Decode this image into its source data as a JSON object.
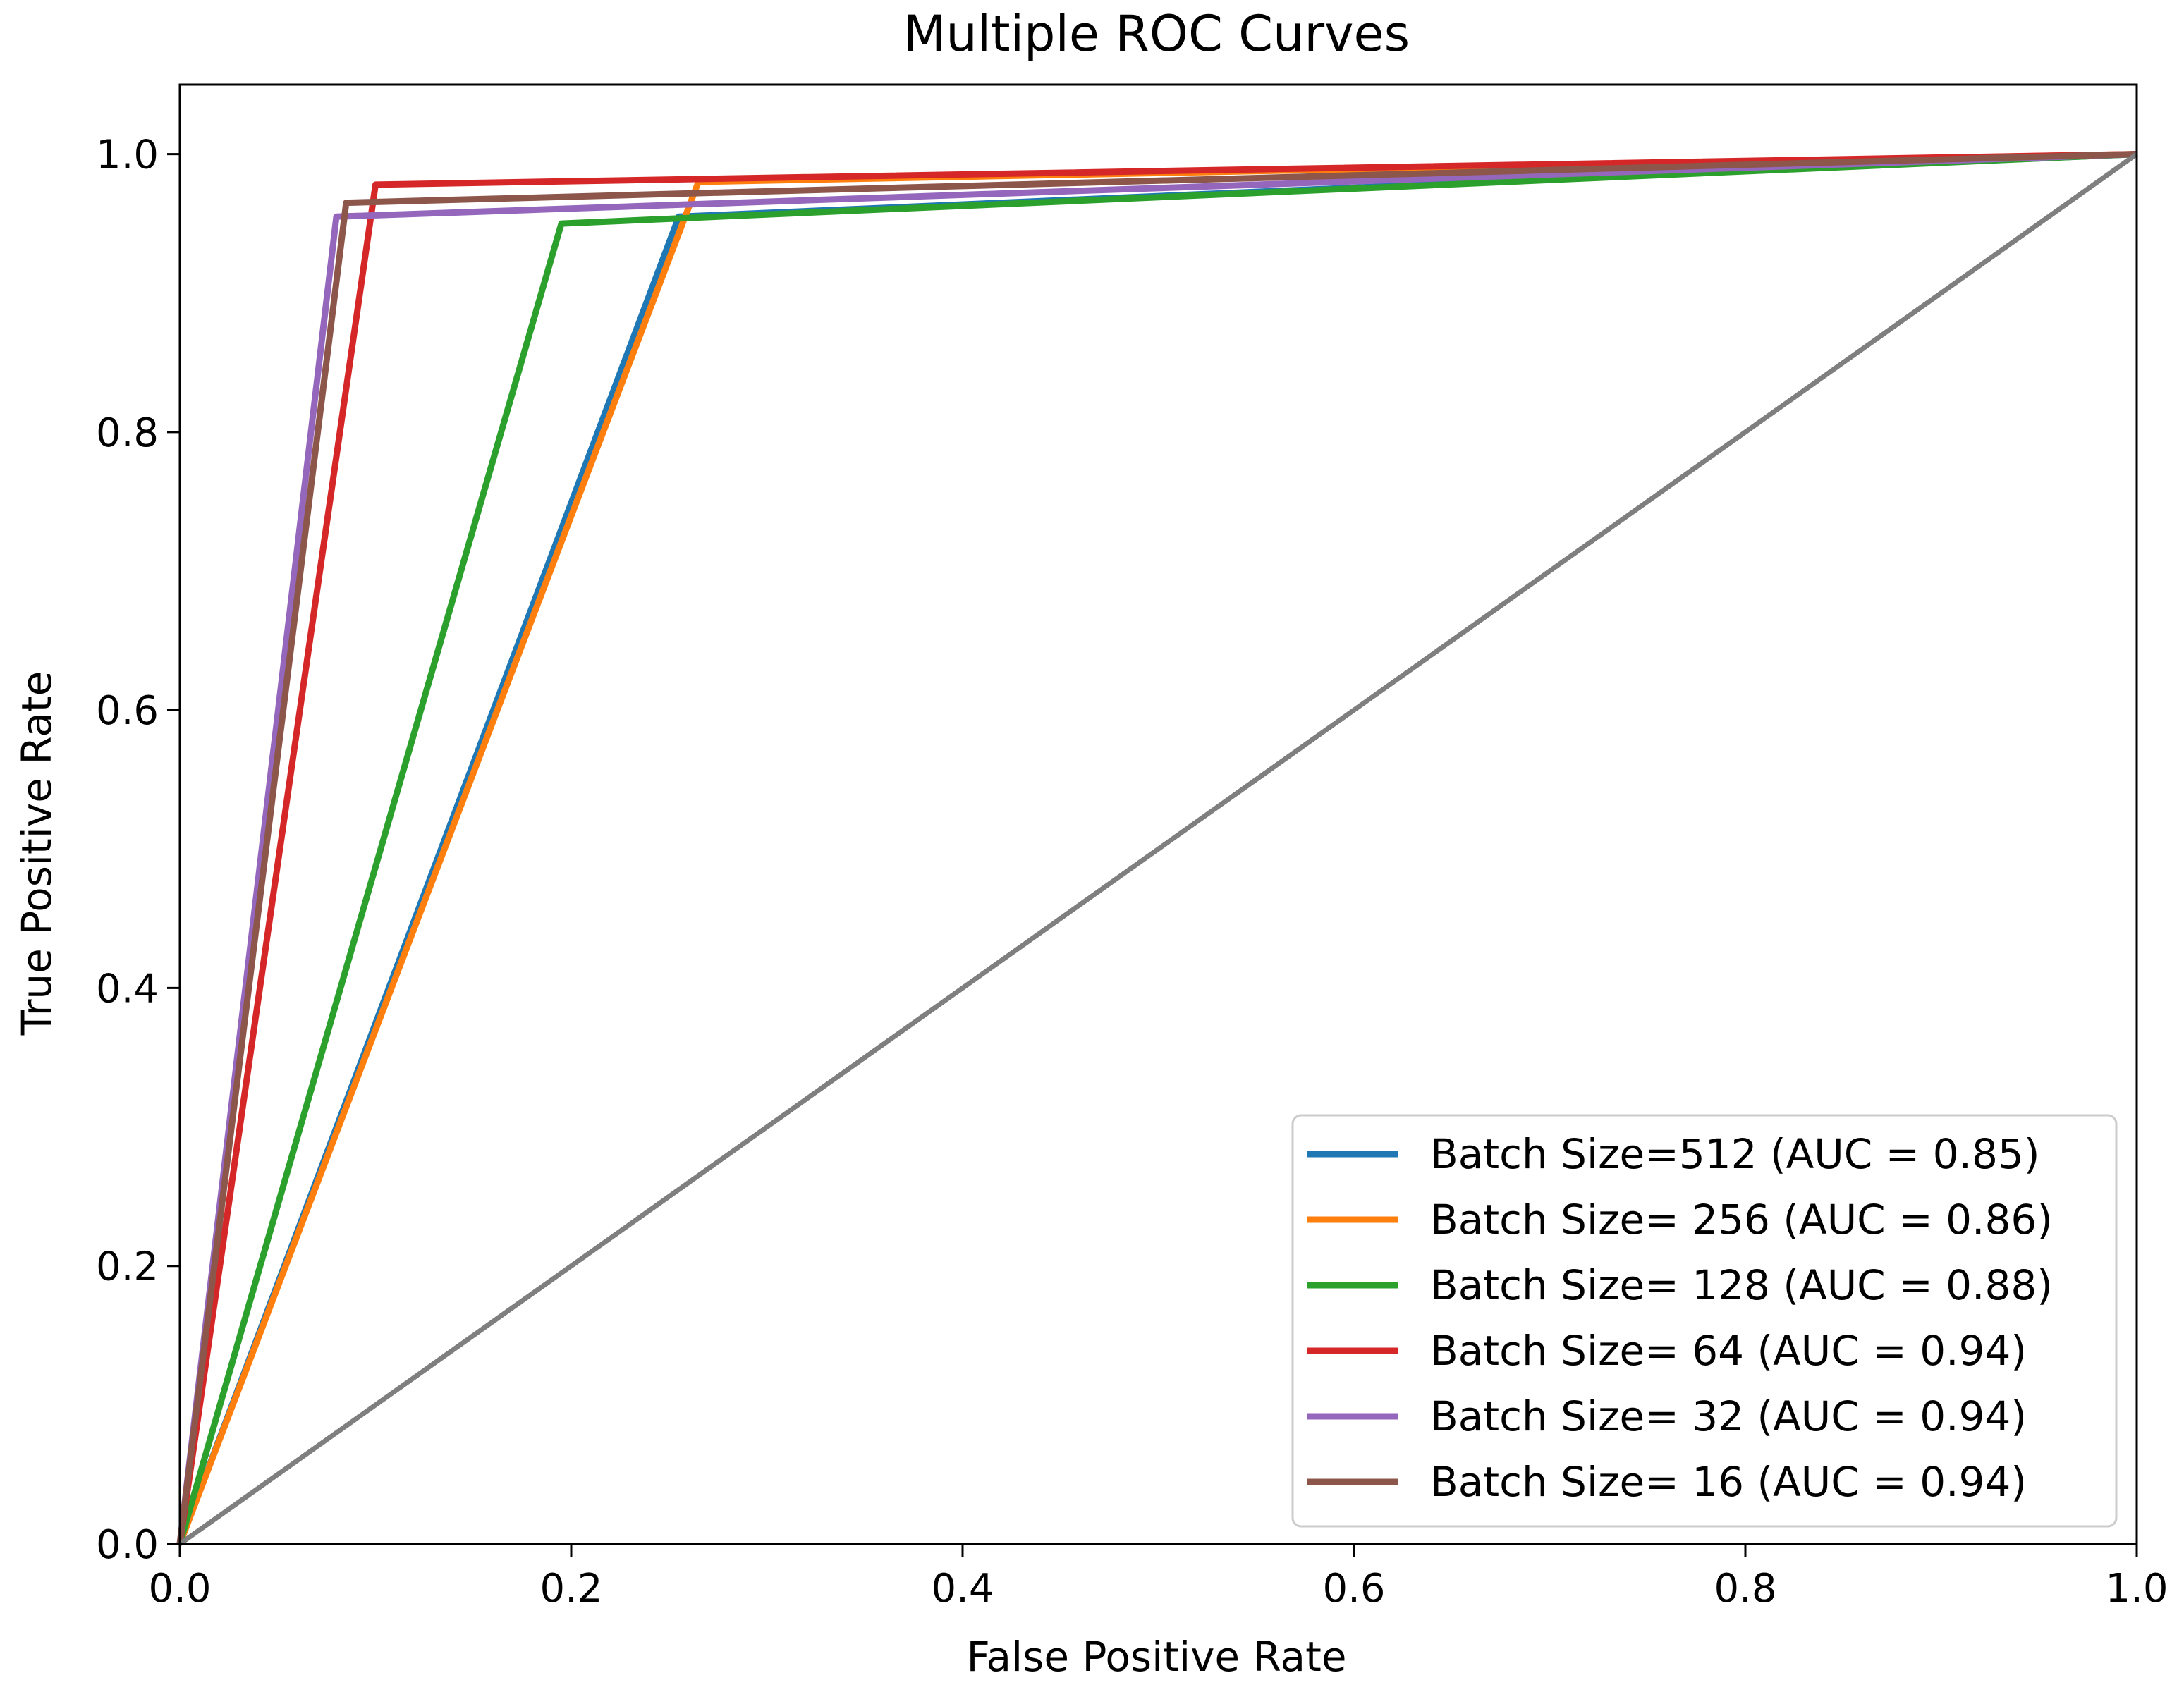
{
  "chart_data": {
    "type": "line",
    "title": "Multiple ROC Curves",
    "xlabel": "False Positive Rate",
    "ylabel": "True Positive Rate",
    "xlim": [
      0,
      1
    ],
    "ylim": [
      0,
      1.05
    ],
    "xticks": [
      0.0,
      0.2,
      0.4,
      0.6,
      0.8,
      1.0
    ],
    "yticks": [
      0.0,
      0.2,
      0.4,
      0.6,
      0.8,
      1.0
    ],
    "xtick_labels": [
      "0.0",
      "0.2",
      "0.4",
      "0.6",
      "0.8",
      "1.0"
    ],
    "ytick_labels": [
      "0.0",
      "0.2",
      "0.4",
      "0.6",
      "0.8",
      "1.0"
    ],
    "grid": false,
    "legend_position": "bottom-right",
    "series": [
      {
        "name": "Batch Size=512 (AUC = 0.85)",
        "color": "#1f77b4",
        "x": [
          0,
          0.255,
          1
        ],
        "y": [
          0,
          0.955,
          1
        ]
      },
      {
        "name": "Batch Size= 256 (AUC = 0.86)",
        "color": "#ff7f0e",
        "x": [
          0,
          0.265,
          1
        ],
        "y": [
          0,
          0.98,
          1
        ]
      },
      {
        "name": "Batch Size= 128 (AUC = 0.88)",
        "color": "#2ca02c",
        "x": [
          0,
          0.195,
          1
        ],
        "y": [
          0,
          0.95,
          1
        ]
      },
      {
        "name": "Batch Size= 64 (AUC = 0.94)",
        "color": "#d62728",
        "x": [
          0,
          0.1,
          1
        ],
        "y": [
          0,
          0.978,
          1
        ]
      },
      {
        "name": "Batch Size= 32 (AUC = 0.94)",
        "color": "#9467bd",
        "x": [
          0,
          0.08,
          1
        ],
        "y": [
          0,
          0.955,
          1
        ]
      },
      {
        "name": "Batch Size= 16 (AUC = 0.94)",
        "color": "#8c564b",
        "x": [
          0,
          0.085,
          1
        ],
        "y": [
          0,
          0.965,
          1
        ]
      }
    ],
    "reference_line": {
      "color": "#7f7f7f",
      "x": [
        0,
        1
      ],
      "y": [
        0,
        1
      ]
    }
  }
}
